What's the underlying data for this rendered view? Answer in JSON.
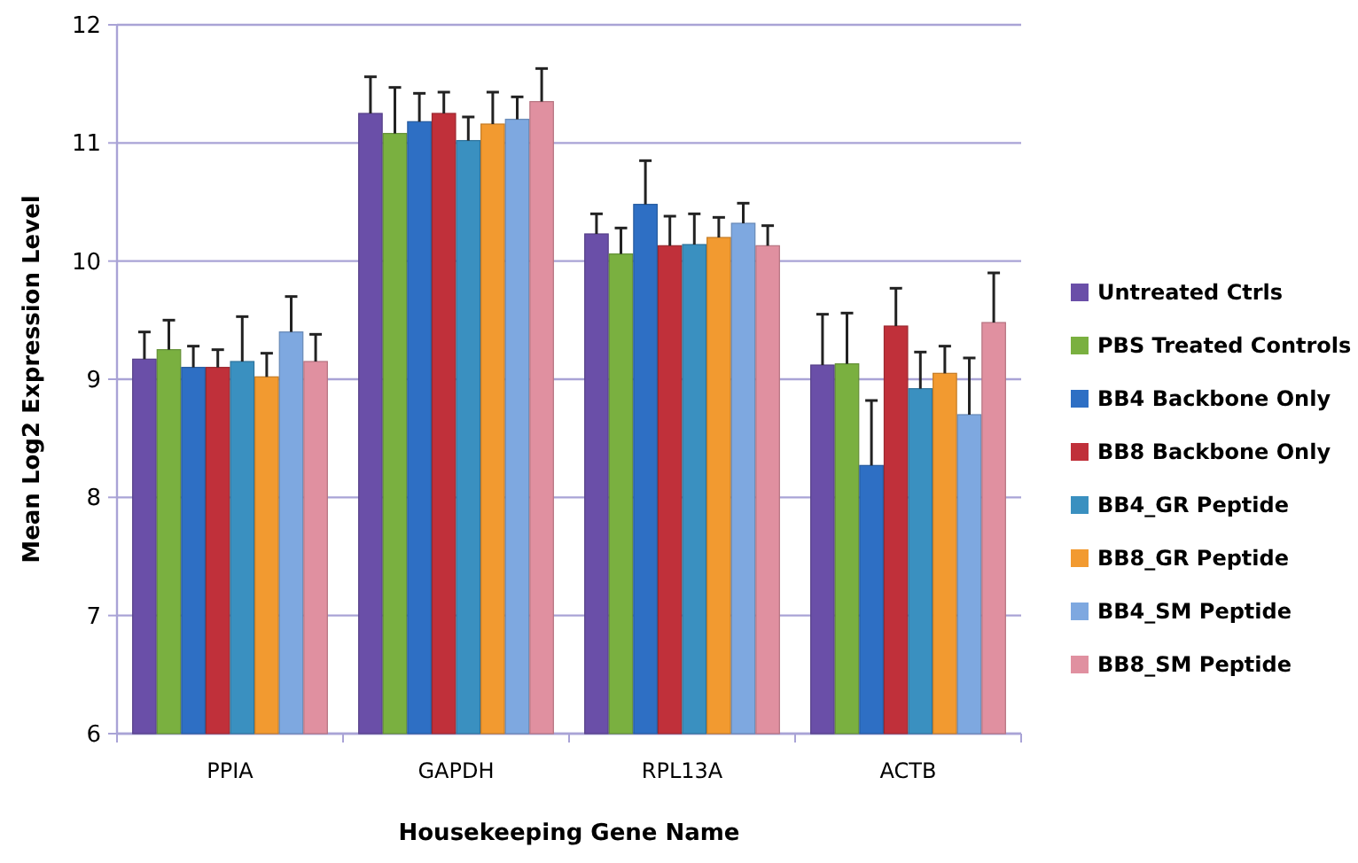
{
  "chart_data": {
    "type": "bar",
    "xlabel": "Housekeeping Gene Name",
    "ylabel": "Mean Log2 Expression Level",
    "categories": [
      "PPIA",
      "GAPDH",
      "RPL13A",
      "ACTB"
    ],
    "ylim": [
      6,
      12
    ],
    "yticks": [
      6,
      7,
      8,
      9,
      10,
      11,
      12
    ],
    "grid": "y",
    "legend": "right",
    "series": [
      {
        "name": "Untreated Ctrls",
        "color": "#6a4fa8",
        "values": [
          9.17,
          11.25,
          10.23,
          9.12
        ],
        "errors": [
          0.23,
          0.31,
          0.17,
          0.43
        ]
      },
      {
        "name": "PBS Treated Controls",
        "color": "#7ab040",
        "values": [
          9.25,
          11.08,
          10.06,
          9.13
        ],
        "errors": [
          0.25,
          0.39,
          0.22,
          0.43
        ]
      },
      {
        "name": "BB4 Backbone Only",
        "color": "#2e6fc4",
        "values": [
          9.1,
          11.18,
          10.48,
          8.27
        ],
        "errors": [
          0.18,
          0.24,
          0.37,
          0.55
        ]
      },
      {
        "name": "BB8 Backbone Only",
        "color": "#c0303a",
        "values": [
          9.1,
          11.25,
          10.13,
          9.45
        ],
        "errors": [
          0.15,
          0.18,
          0.25,
          0.32
        ]
      },
      {
        "name": "BB4_GR Peptide",
        "color": "#3a90c0",
        "values": [
          9.15,
          11.02,
          10.14,
          8.92
        ],
        "errors": [
          0.38,
          0.2,
          0.26,
          0.31
        ]
      },
      {
        "name": "BB8_GR Peptide",
        "color": "#f29a30",
        "values": [
          9.02,
          11.16,
          10.2,
          9.05
        ],
        "errors": [
          0.2,
          0.27,
          0.17,
          0.23
        ]
      },
      {
        "name": "BB4_SM Peptide",
        "color": "#7ea8e0",
        "values": [
          9.4,
          11.2,
          10.32,
          8.7
        ],
        "errors": [
          0.3,
          0.19,
          0.17,
          0.48
        ]
      },
      {
        "name": "BB8_SM Peptide",
        "color": "#e090a0",
        "values": [
          9.15,
          11.35,
          10.13,
          9.48
        ],
        "errors": [
          0.23,
          0.28,
          0.17,
          0.42
        ]
      }
    ]
  }
}
